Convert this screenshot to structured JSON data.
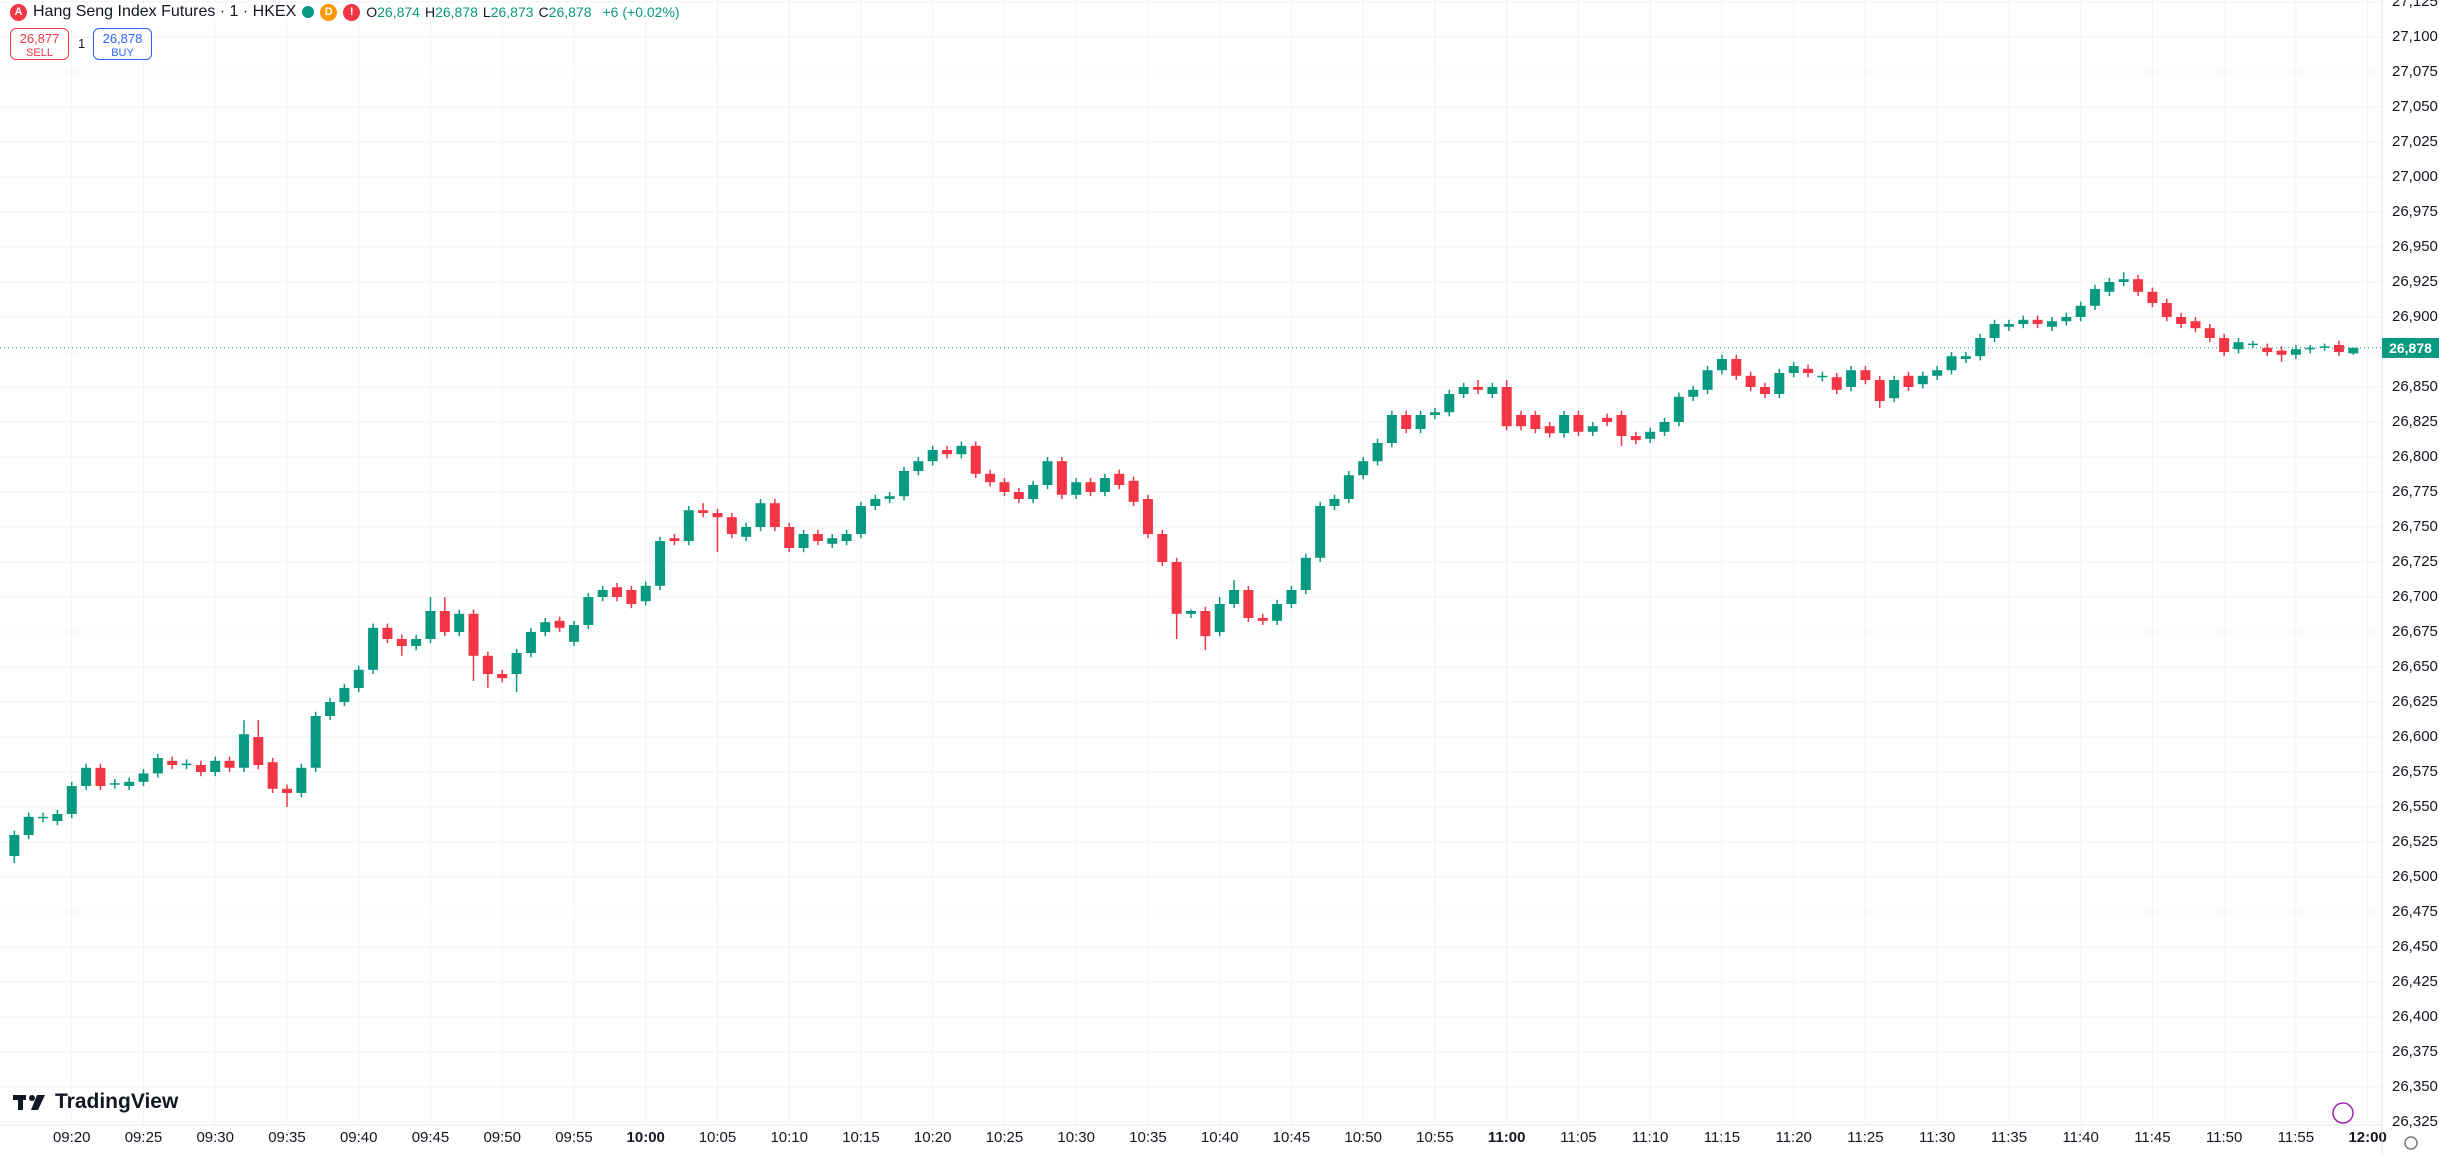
{
  "header": {
    "symbol": "Hang Seng Index Futures · 1 · HKEX",
    "badges": [
      "D",
      "!"
    ],
    "ohlc": [
      {
        "key": "O",
        "value": "26,874"
      },
      {
        "key": "H",
        "value": "26,878"
      },
      {
        "key": "L",
        "value": "26,873"
      },
      {
        "key": "C",
        "value": "26,878"
      }
    ],
    "change": "+6 (+0.02%)",
    "sell": {
      "price": "26,877",
      "label": "SELL"
    },
    "quantity": "1",
    "buy": {
      "price": "26,878",
      "label": "BUY"
    }
  },
  "branding": "TradingView",
  "chart_data": {
    "type": "candlestick",
    "up_color": "#089981",
    "down_color": "#f23645",
    "grid": true,
    "x": [
      "09:16",
      "09:17",
      "09:18",
      "09:19",
      "09:20",
      "09:21",
      "09:22",
      "09:23",
      "09:24",
      "09:25",
      "09:26",
      "09:27",
      "09:28",
      "09:29",
      "09:30",
      "09:31",
      "09:32",
      "09:33",
      "09:34",
      "09:35",
      "09:36",
      "09:37",
      "09:38",
      "09:39",
      "09:40",
      "09:41",
      "09:42",
      "09:43",
      "09:44",
      "09:45",
      "09:46",
      "09:47",
      "09:48",
      "09:49",
      "09:50",
      "09:51",
      "09:52",
      "09:53",
      "09:54",
      "09:55",
      "09:56",
      "09:57",
      "09:58",
      "09:59",
      "10:00",
      "10:01",
      "10:02",
      "10:03",
      "10:04",
      "10:05",
      "10:06",
      "10:07",
      "10:08",
      "10:09",
      "10:10",
      "10:11",
      "10:12",
      "10:13",
      "10:14",
      "10:15",
      "10:16",
      "10:17",
      "10:18",
      "10:19",
      "10:20",
      "10:21",
      "10:22",
      "10:23",
      "10:24",
      "10:25",
      "10:26",
      "10:27",
      "10:28",
      "10:29",
      "10:30",
      "10:31",
      "10:32",
      "10:33",
      "10:34",
      "10:35",
      "10:36",
      "10:37",
      "10:38",
      "10:39",
      "10:40",
      "10:41",
      "10:42",
      "10:43",
      "10:44",
      "10:45",
      "10:46",
      "10:47",
      "10:48",
      "10:49",
      "10:50",
      "10:51",
      "10:52",
      "10:53",
      "10:54",
      "10:55",
      "10:56",
      "10:57",
      "10:58",
      "10:59",
      "11:00",
      "11:01",
      "11:02",
      "11:03",
      "11:04",
      "11:05",
      "11:06",
      "11:07",
      "11:08",
      "11:09",
      "11:10",
      "11:11",
      "11:12",
      "11:13",
      "11:14",
      "11:15",
      "11:16",
      "11:17",
      "11:18",
      "11:19",
      "11:20",
      "11:21",
      "11:22",
      "11:23",
      "11:24",
      "11:25",
      "11:26",
      "11:27",
      "11:28",
      "11:29",
      "11:30",
      "11:31",
      "11:32",
      "11:33",
      "11:34",
      "11:35",
      "11:36",
      "11:37",
      "11:38",
      "11:39",
      "11:40",
      "11:41",
      "11:42",
      "11:43",
      "11:44",
      "11:45",
      "11:46",
      "11:47",
      "11:48",
      "11:49",
      "11:50",
      "11:51",
      "11:52",
      "11:53",
      "11:54",
      "11:55",
      "11:56",
      "11:57",
      "11:58",
      "11:59"
    ],
    "open": [
      26515,
      26530,
      26542,
      26540,
      26545,
      26565,
      26578,
      26566,
      26565,
      26568,
      26574,
      26583,
      26580,
      26580,
      26575,
      26583,
      26578,
      26600,
      26582,
      26563,
      26560,
      26578,
      26615,
      26625,
      26635,
      26648,
      26678,
      26670,
      26665,
      26670,
      26690,
      26675,
      26688,
      26658,
      26645,
      26645,
      26660,
      26675,
      26683,
      26668,
      26680,
      26700,
      26707,
      26705,
      26697,
      26708,
      26742,
      26740,
      26762,
      26760,
      26757,
      26743,
      26750,
      26767,
      26750,
      26735,
      26745,
      26738,
      26740,
      26745,
      26765,
      26770,
      26772,
      26790,
      26797,
      26805,
      26802,
      26808,
      26788,
      26782,
      26775,
      26770,
      26780,
      26797,
      26773,
      26782,
      26775,
      26788,
      26783,
      26770,
      26745,
      26725,
      26688,
      26690,
      26675,
      26695,
      26705,
      26685,
      26683,
      26695,
      26705,
      26728,
      26765,
      26770,
      26787,
      26797,
      26810,
      26830,
      26820,
      26830,
      26832,
      26845,
      26850,
      26845,
      26850,
      26830,
      26830,
      26822,
      26817,
      26830,
      26818,
      26828,
      26830,
      26815,
      26813,
      26818,
      26825,
      26843,
      26848,
      26862,
      26870,
      26858,
      26850,
      26845,
      26860,
      26863,
      26857,
      26857,
      26850,
      26862,
      26855,
      26842,
      26858,
      26852,
      26858,
      26862,
      26870,
      26872,
      26885,
      26893,
      26895,
      26898,
      26893,
      26897,
      26900,
      26908,
      26918,
      26925,
      26927,
      26918,
      26910,
      26900,
      26897,
      26892,
      26885,
      26877,
      26880,
      26878,
      26876,
      26873,
      26877,
      26878,
      26880,
      26874
    ],
    "high": [
      26533,
      26546,
      26546,
      26548,
      26568,
      26581,
      26581,
      26570,
      26571,
      26577,
      26588,
      26586,
      26584,
      26583,
      26586,
      26586,
      26612,
      26612,
      26585,
      26566,
      26581,
      26618,
      26628,
      26638,
      26651,
      26681,
      26681,
      26673,
      26673,
      26700,
      26700,
      26691,
      26691,
      26661,
      26648,
      26663,
      26678,
      26685,
      26686,
      26683,
      26703,
      26708,
      26710,
      26708,
      26711,
      26743,
      26745,
      26765,
      26767,
      26763,
      26760,
      26753,
      26770,
      26770,
      26753,
      26748,
      26748,
      26745,
      26748,
      26768,
      26773,
      26775,
      26793,
      26800,
      26808,
      26808,
      26811,
      26811,
      26791,
      26785,
      26778,
      26783,
      26800,
      26800,
      26785,
      26785,
      26788,
      26791,
      26786,
      26773,
      26748,
      26728,
      26691,
      26693,
      26700,
      26712,
      26708,
      26688,
      26698,
      26708,
      26731,
      26768,
      26773,
      26790,
      26800,
      26813,
      26833,
      26833,
      26833,
      26835,
      26848,
      26853,
      26855,
      26853,
      26855,
      26833,
      26833,
      26825,
      26833,
      26833,
      26825,
      26831,
      26833,
      26818,
      26821,
      26828,
      26846,
      26851,
      26865,
      26873,
      26873,
      26861,
      26853,
      26863,
      26868,
      26866,
      26861,
      26860,
      26865,
      26865,
      26858,
      26858,
      26861,
      26861,
      26865,
      26875,
      26875,
      26888,
      26898,
      26898,
      26901,
      26901,
      26900,
      26903,
      26911,
      26923,
      26928,
      26932,
      26930,
      26921,
      26913,
      26903,
      26900,
      26895,
      26888,
      26885,
      26883,
      26881,
      26879,
      26880,
      26880,
      26881,
      26883,
      26878
    ],
    "low": [
      26510,
      26527,
      26539,
      26537,
      26542,
      26562,
      26562,
      26563,
      26562,
      26565,
      26571,
      26577,
      26577,
      26572,
      26572,
      26575,
      26575,
      26577,
      26560,
      26550,
      26557,
      26575,
      26612,
      26622,
      26632,
      26645,
      26667,
      26658,
      26662,
      26667,
      26672,
      26672,
      26640,
      26635,
      26639,
      26632,
      26657,
      26672,
      26675,
      26665,
      26677,
      26697,
      26697,
      26692,
      26694,
      26705,
      26737,
      26737,
      26757,
      26732,
      26742,
      26740,
      26747,
      26747,
      26732,
      26732,
      26737,
      26735,
      26737,
      26742,
      26762,
      26767,
      26769,
      26787,
      26794,
      26799,
      26799,
      26785,
      26779,
      26772,
      26767,
      26767,
      26777,
      26770,
      26770,
      26772,
      26772,
      26777,
      26765,
      26742,
      26722,
      26670,
      26685,
      26662,
      26672,
      26692,
      26682,
      26680,
      26680,
      26692,
      26702,
      26725,
      26762,
      26767,
      26784,
      26794,
      26807,
      26817,
      26817,
      26827,
      26829,
      26842,
      26845,
      26842,
      26819,
      26819,
      26817,
      26814,
      26814,
      26815,
      26815,
      26822,
      26808,
      26809,
      26810,
      26815,
      26822,
      26840,
      26845,
      26859,
      26855,
      26847,
      26842,
      26842,
      26857,
      26857,
      26854,
      26845,
      26847,
      26852,
      26835,
      26839,
      26847,
      26849,
      26855,
      26859,
      26867,
      26869,
      26882,
      26890,
      26892,
      26892,
      26890,
      26894,
      26897,
      26905,
      26915,
      26922,
      26915,
      26907,
      26897,
      26892,
      26889,
      26882,
      26872,
      26874,
      26878,
      26872,
      26868,
      26870,
      26874,
      26876,
      26872,
      26873
    ],
    "close": [
      26530,
      26543,
      26543,
      26545,
      26565,
      26578,
      26565,
      26567,
      26568,
      26574,
      26585,
      26580,
      26581,
      26575,
      26583,
      26578,
      26602,
      26580,
      26563,
      26560,
      26578,
      26615,
      26625,
      26635,
      26648,
      26678,
      26670,
      26665,
      26670,
      26690,
      26675,
      26688,
      26658,
      26645,
      26642,
      26660,
      26675,
      26682,
      26678,
      26680,
      26700,
      26705,
      26700,
      26695,
      26708,
      26740,
      26740,
      26762,
      26760,
      26757,
      26745,
      26750,
      26767,
      26750,
      26735,
      26745,
      26740,
      26742,
      26745,
      26765,
      26770,
      26772,
      26790,
      26797,
      26805,
      26802,
      26808,
      26788,
      26782,
      26775,
      26770,
      26780,
      26797,
      26773,
      26782,
      26775,
      26785,
      26780,
      26768,
      26745,
      26725,
      26688,
      26690,
      26672,
      26695,
      26705,
      26685,
      26683,
      26695,
      26705,
      26728,
      26765,
      26770,
      26787,
      26797,
      26810,
      26830,
      26820,
      26830,
      26832,
      26845,
      26850,
      26848,
      26850,
      26822,
      26822,
      26820,
      26817,
      26830,
      26818,
      26822,
      26825,
      26815,
      26812,
      26818,
      26825,
      26843,
      26848,
      26862,
      26870,
      26858,
      26850,
      26845,
      26860,
      26865,
      26860,
      26858,
      26848,
      26862,
      26855,
      26840,
      26855,
      26850,
      26858,
      26862,
      26872,
      26872,
      26885,
      26895,
      26895,
      26898,
      26895,
      26897,
      26900,
      26908,
      26920,
      26925,
      26927,
      26918,
      26910,
      26900,
      26895,
      26892,
      26885,
      26875,
      26882,
      26881,
      26875,
      26873,
      26877,
      26878,
      26879,
      26875,
      26878
    ],
    "xlim": [
      "09:15",
      "12:01"
    ],
    "xticks": [
      "09:20",
      "09:25",
      "09:30",
      "09:35",
      "09:40",
      "09:45",
      "09:50",
      "09:55",
      "10:00",
      "10:05",
      "10:10",
      "10:15",
      "10:20",
      "10:25",
      "10:30",
      "10:35",
      "10:40",
      "10:45",
      "10:50",
      "10:55",
      "11:00",
      "11:05",
      "11:10",
      "11:15",
      "11:20",
      "11:25",
      "11:30",
      "11:35",
      "11:40",
      "11:45",
      "11:50",
      "11:55",
      "12:00"
    ],
    "ylim": [
      26325,
      27125
    ],
    "yticks": [
      {
        "value": 26325,
        "label": "26,325"
      },
      {
        "value": 26350,
        "label": "26,350"
      },
      {
        "value": 26375,
        "label": "26,375"
      },
      {
        "value": 26400,
        "label": "26,400"
      },
      {
        "value": 26425,
        "label": "26,425"
      },
      {
        "value": 26450,
        "label": "26,450"
      },
      {
        "value": 26475,
        "label": "26,475"
      },
      {
        "value": 26500,
        "label": "26,500"
      },
      {
        "value": 26525,
        "label": "26,525"
      },
      {
        "value": 26550,
        "label": "26,550"
      },
      {
        "value": 26575,
        "label": "26,575"
      },
      {
        "value": 26600,
        "label": "26,600"
      },
      {
        "value": 26625,
        "label": "26,625"
      },
      {
        "value": 26650,
        "label": "26,650"
      },
      {
        "value": 26675,
        "label": "26,675"
      },
      {
        "value": 26700,
        "label": "26,700"
      },
      {
        "value": 26725,
        "label": "26,725"
      },
      {
        "value": 26750,
        "label": "26,750"
      },
      {
        "value": 26775,
        "label": "26,775"
      },
      {
        "value": 26800,
        "label": "26,800"
      },
      {
        "value": 26825,
        "label": "26,825"
      },
      {
        "value": 26850,
        "label": "26,850"
      },
      {
        "value": 26875,
        "label": "26,875"
      },
      {
        "value": 26900,
        "label": "26,900"
      },
      {
        "value": 26925,
        "label": "26,925"
      },
      {
        "value": 26950,
        "label": "26,950"
      },
      {
        "value": 26975,
        "label": "26,975"
      },
      {
        "value": 27000,
        "label": "27,000"
      },
      {
        "value": 27025,
        "label": "27,025"
      },
      {
        "value": 27050,
        "label": "27,050"
      },
      {
        "value": 27075,
        "label": "27,075"
      },
      {
        "value": 27100,
        "label": "27,100"
      },
      {
        "value": 27125,
        "label": "27,125"
      }
    ],
    "last_price": {
      "value": 26878,
      "label": "26,878"
    }
  }
}
